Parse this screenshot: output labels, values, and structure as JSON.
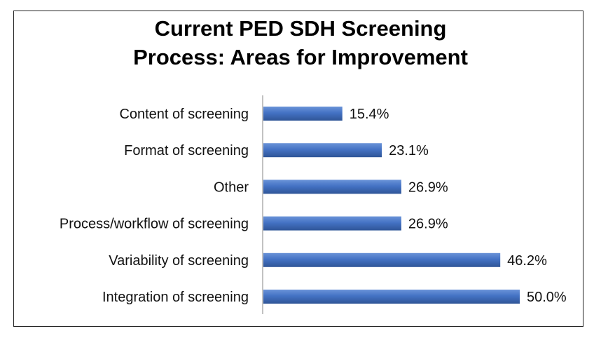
{
  "chart": {
    "title_line1": "Current PED SDH Screening",
    "title_line2": "Process: Areas for Improvement"
  },
  "colors": {
    "bar": "#4472C4",
    "bar_edge": "#2F5597",
    "axis": "#9a9a9a"
  },
  "chart_data": {
    "type": "bar",
    "orientation": "horizontal",
    "title": "Current PED SDH Screening Process: Areas for Improvement",
    "categories": [
      "Content of screening",
      "Format of screening",
      "Other",
      "Process/workflow of screening",
      "Variability of screening",
      "Integration of screening"
    ],
    "values": [
      15.4,
      23.1,
      26.9,
      26.9,
      46.2,
      50.0
    ],
    "value_labels": [
      "15.4%",
      "23.1%",
      "26.9%",
      "26.9%",
      "46.2%",
      "50.0%"
    ],
    "xlim": [
      0,
      50
    ],
    "grid": false,
    "legend": "none"
  }
}
